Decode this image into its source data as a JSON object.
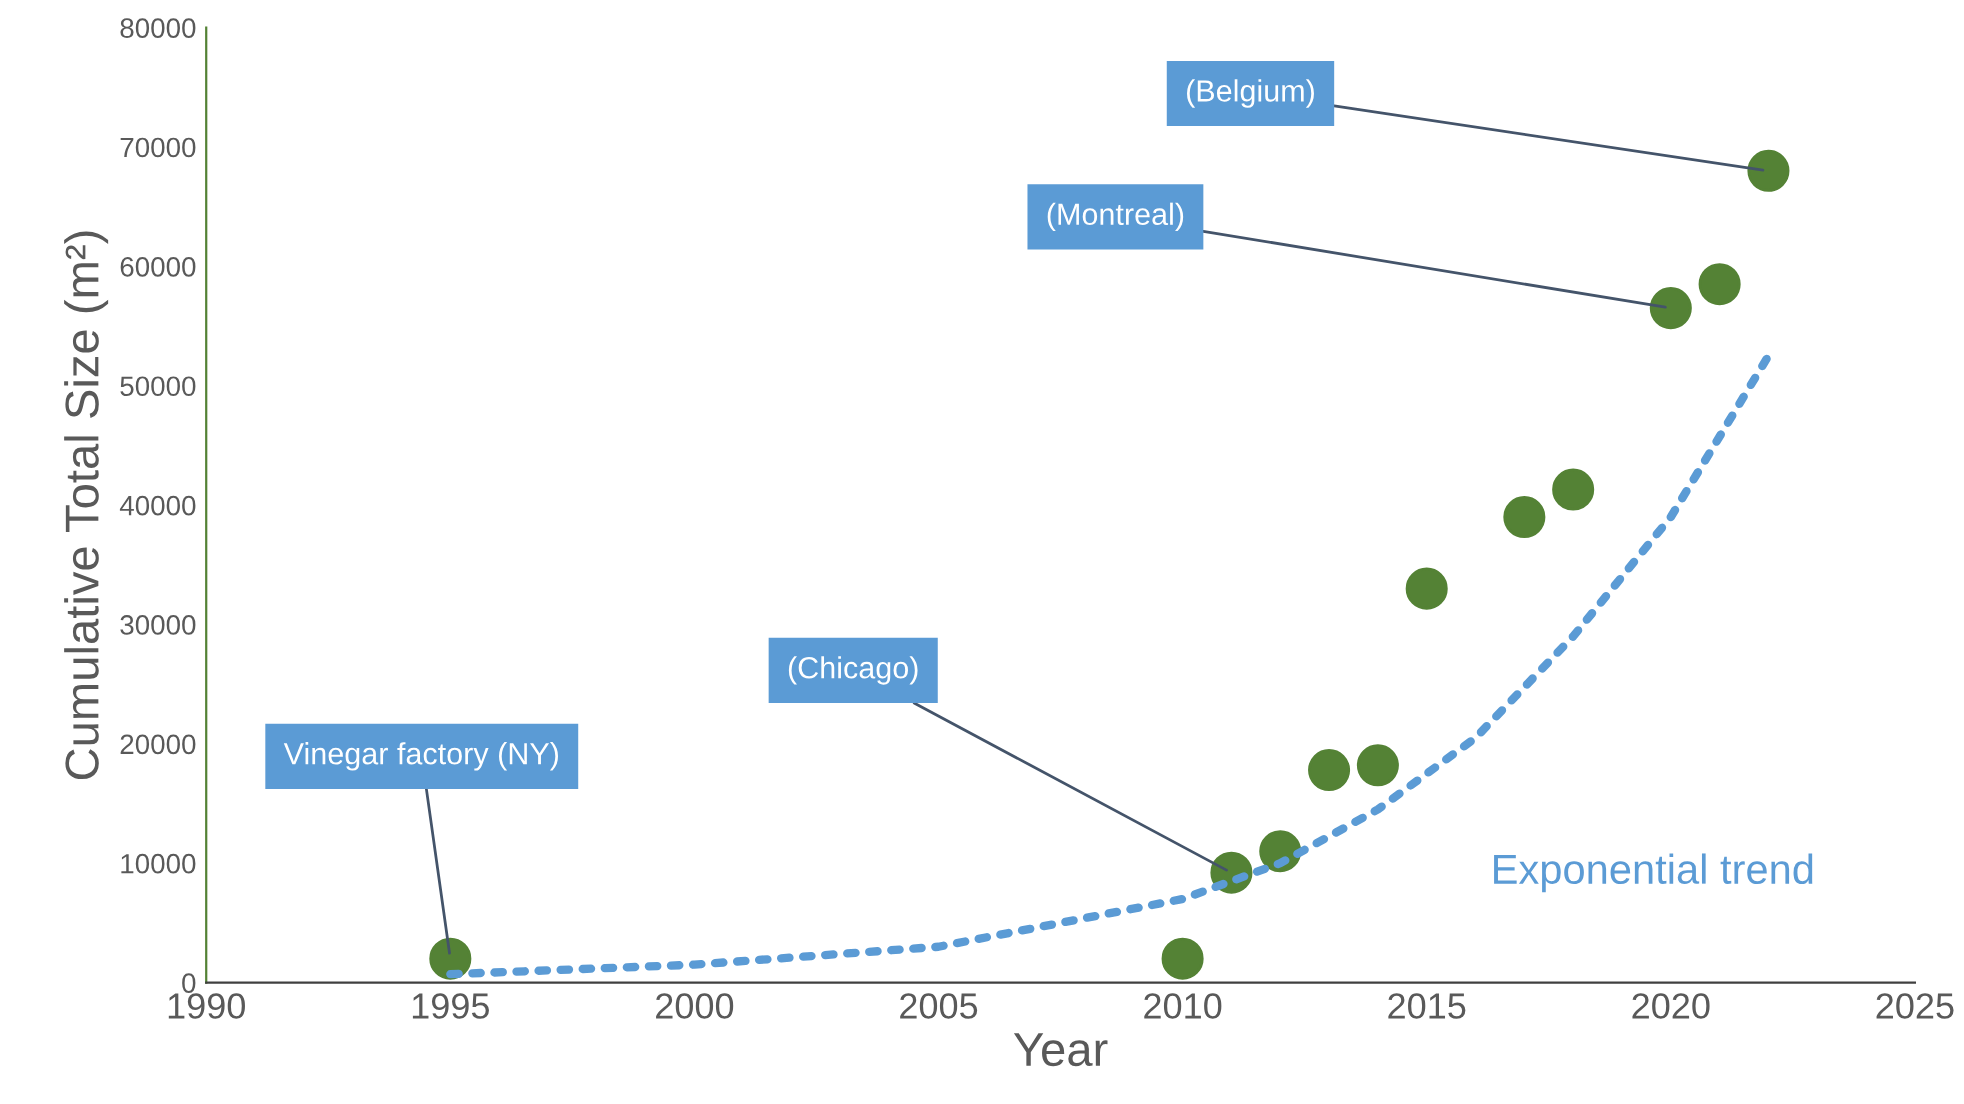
{
  "chart_data": {
    "type": "scatter",
    "xlabel": "Year",
    "ylabel": "Cumulative Total Size (m²)",
    "xlim": [
      1990,
      2025
    ],
    "xticks": [
      1990,
      1995,
      2000,
      2005,
      2010,
      2015,
      2020,
      2025
    ],
    "ylim": [
      0,
      80000
    ],
    "yticks": [
      0,
      10000,
      20000,
      30000,
      40000,
      50000,
      60000,
      70000,
      80000
    ],
    "grid": false,
    "legend": false,
    "series": [
      {
        "marker": "circle",
        "color": "#548235",
        "x": [
          1995,
          2010,
          2011,
          2012,
          2013,
          2014,
          2015,
          2017,
          2018,
          2020,
          2021,
          2022
        ],
        "values": [
          2000,
          2000,
          9200,
          11000,
          17800,
          18200,
          33000,
          39000,
          41300,
          56500,
          58500,
          68000
        ]
      },
      {
        "type": "line",
        "name": "Exponential trend",
        "color": "#5b9bd5",
        "line_style": "dotted",
        "x": [
          1995,
          2000,
          2005,
          2010,
          2012,
          2014,
          2016,
          2018,
          2020,
          2022
        ],
        "values": [
          700,
          1500,
          3000,
          7000,
          10000,
          14500,
          20500,
          29000,
          39000,
          52500
        ]
      }
    ],
    "annotations": [
      {
        "text": "Vinegar factory (NY)",
        "x": 1995,
        "y": 2000
      },
      {
        "text": "(Chicago)",
        "x": 2011,
        "y": 9200
      },
      {
        "text": "(Montreal)",
        "x": 2020,
        "y": 56500
      },
      {
        "text": "(Belgium)",
        "x": 2022,
        "y": 68000
      }
    ]
  }
}
